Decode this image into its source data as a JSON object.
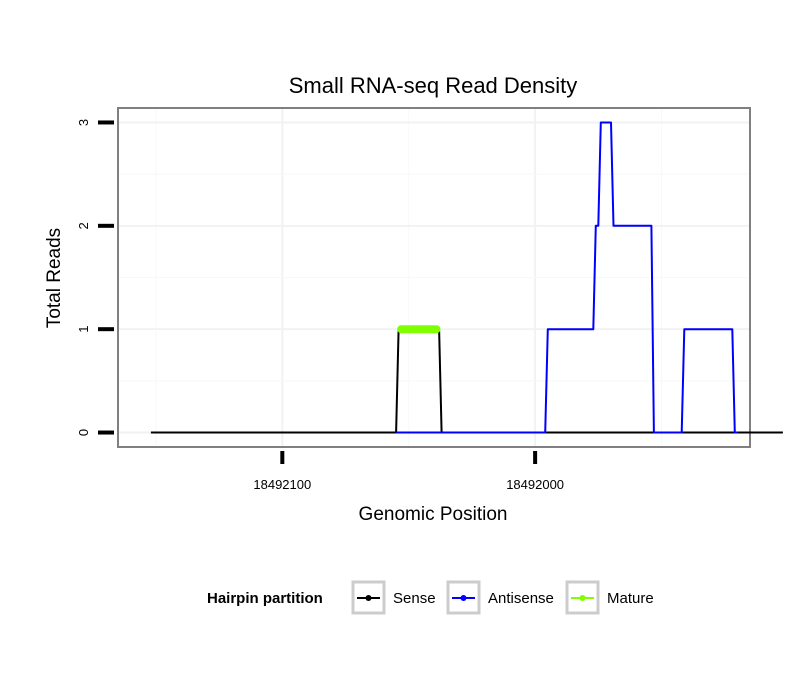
{
  "chart_data": {
    "type": "line",
    "title": "Small RNA-seq Read Density",
    "xlabel": "Genomic Position",
    "ylabel": "Total Reads",
    "x_reversed": true,
    "xlim": [
      18492165,
      18491915
    ],
    "ylim": [
      -0.14,
      3.14
    ],
    "x_ticks": [
      18492100,
      18492000
    ],
    "x_tick_labels": [
      "18492100",
      "18492000"
    ],
    "y_ticks": [
      0,
      1,
      2,
      3
    ],
    "y_tick_labels": [
      "0",
      "1",
      "2",
      "3"
    ],
    "grid": true,
    "legend": {
      "title": "Hairpin partition",
      "position": "bottom",
      "entries": [
        {
          "label": "Sense",
          "color": "#000000"
        },
        {
          "label": "Antisense",
          "color": "#0000ff"
        },
        {
          "label": "Mature",
          "color": "#80ff00"
        }
      ]
    },
    "series": [
      {
        "name": "Sense",
        "color": "#000000",
        "x": [
          18492152,
          18492055,
          18492054,
          18492038,
          18492037,
          18491902
        ],
        "y": [
          0,
          0,
          1,
          1,
          0,
          0
        ]
      },
      {
        "name": "Antisense",
        "color": "#0000ff",
        "x": [
          18492055,
          18492037,
          18491996,
          18491995,
          18491977,
          18491976,
          18491975,
          18491974,
          18491973,
          18491972,
          18491970,
          18491969,
          18491954,
          18491953,
          18491952,
          18491942,
          18491941,
          18491922,
          18491921,
          18491920
        ],
        "y": [
          0,
          0,
          0,
          1,
          1,
          2,
          2,
          3,
          3,
          3,
          3,
          2,
          2,
          0,
          0,
          0,
          1,
          1,
          0,
          0
        ]
      },
      {
        "name": "Mature",
        "color": "#80ff00",
        "x": [
          18492053,
          18492039
        ],
        "y": [
          1,
          1
        ]
      }
    ]
  }
}
